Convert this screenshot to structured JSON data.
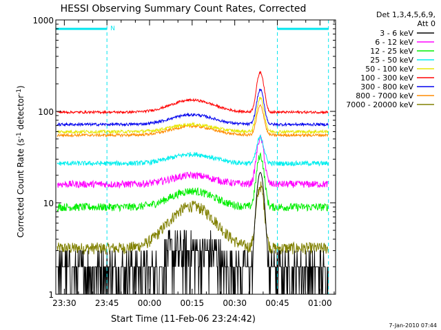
{
  "chart_data": {
    "type": "line",
    "title": "HESSI Observing Summary Count Rates, Corrected",
    "xlabel": "Start Time (11-Feb-06 23:24:42)",
    "ylabel": "Corrected Count Rate (s-1 detector-1)",
    "ylabel_parts": [
      "Corrected Count Rate (s",
      "-1",
      " detector",
      "-1",
      ")"
    ],
    "y_scale": "log",
    "ylim": [
      1,
      1000
    ],
    "xlim_minutes": [
      -18,
      80.5
    ],
    "x_ticks": [
      {
        "label": "23:30",
        "t": -15
      },
      {
        "label": "23:45",
        "t": 0
      },
      {
        "label": "00:00",
        "t": 15
      },
      {
        "label": "00:15",
        "t": 30
      },
      {
        "label": "00:30",
        "t": 45
      },
      {
        "label": "00:45",
        "t": 60
      },
      {
        "label": "01:00",
        "t": 75
      }
    ],
    "y_tick_labels": [
      {
        "label": "1",
        "v": 1
      },
      {
        "label": "10",
        "v": 10
      },
      {
        "label": "100",
        "v": 100
      },
      {
        "label": "1000",
        "v": 1000
      }
    ],
    "legend_header": [
      "Det 1,3,4,5,6,9,",
      "Att 0"
    ],
    "legend_position": "right",
    "night_bars": [
      [
        -18,
        0
      ],
      [
        60,
        78
      ]
    ],
    "night_bar_color": "#00e5ee",
    "saa_marker": {
      "label": "N",
      "t": 0
    },
    "boundary_lines": [
      0,
      60,
      78
    ],
    "boundary_color": "#00e5ee",
    "series": [
      {
        "name": "3 - 6 keV",
        "color": "#000000",
        "base": 1.5,
        "bump": 0.5,
        "flare": 20,
        "noise": 1.5,
        "floor": 1
      },
      {
        "name": "6 - 12 keV",
        "color": "#ff00ff",
        "base": 16,
        "bump": 4,
        "flare": 35,
        "noise": 0.09,
        "floor": 0
      },
      {
        "name": "12 - 25 keV",
        "color": "#00ee00",
        "base": 9,
        "bump": 4.5,
        "flare": 24,
        "noise": 0.1,
        "floor": 0
      },
      {
        "name": "25 - 50 keV",
        "color": "#00eeee",
        "base": 27,
        "bump": 7,
        "flare": 25,
        "noise": 0.06,
        "floor": 0
      },
      {
        "name": "50 - 100 keV",
        "color": "#e6e600",
        "base": 60,
        "bump": 12,
        "flare": 80,
        "noise": 0.04,
        "floor": 0
      },
      {
        "name": "100 - 300 keV",
        "color": "#ff0000",
        "base": 98,
        "bump": 35,
        "flare": 170,
        "noise": 0.03,
        "floor": 0
      },
      {
        "name": "300 - 800 keV",
        "color": "#0000ee",
        "base": 72,
        "bump": 20,
        "flare": 100,
        "noise": 0.035,
        "floor": 0
      },
      {
        "name": "800 - 7000 keV",
        "color": "#ff8c00",
        "base": 55,
        "bump": 14,
        "flare": 60,
        "noise": 0.035,
        "floor": 0
      },
      {
        "name": "7000 - 20000 keV",
        "color": "#808000",
        "base": 3.2,
        "bump": 6,
        "flare": 12,
        "noise": 0.15,
        "floor": 0
      }
    ],
    "footer_date": "7-Jan-2010 07:44"
  }
}
